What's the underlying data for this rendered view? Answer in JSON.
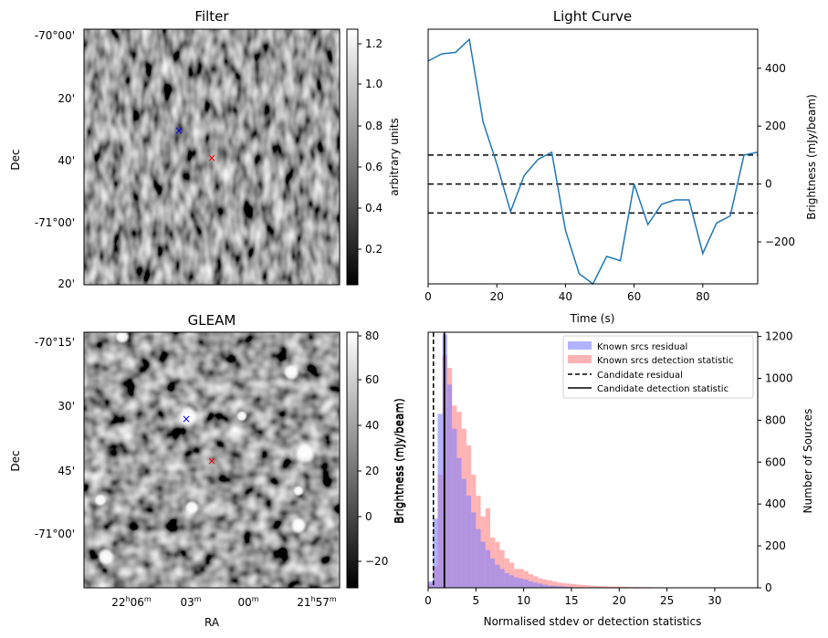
{
  "colors": {
    "line": "#1f77b4",
    "known_hist": "#7f7fff",
    "candidate_hist": "#ff9a9a",
    "marker_blue": "#0000ff",
    "marker_red": "#ff0000"
  },
  "panels": {
    "filter": {
      "title": "Filter",
      "ylabel": "Dec",
      "yticks": [
        "-70°00'",
        "20'",
        "40'",
        "-71°00'",
        "20'"
      ],
      "colorbar_label": "arbitrary units",
      "colorbar_ticks": [
        "0.2",
        "0.4",
        "0.6",
        "0.8",
        "1.0",
        "1.2"
      ]
    },
    "gleam": {
      "title": "GLEAM",
      "ylabel": "Dec",
      "xlabel": "RA",
      "yticks": [
        "-70°15'",
        "30'",
        "45'",
        "-71°00'"
      ],
      "xticks": [
        {
          "main": "22",
          "sup1": "h",
          "mid": "06",
          "sup2": "m"
        },
        {
          "main": "03",
          "sup1": "m",
          "mid": "",
          "sup2": ""
        },
        {
          "main": "00",
          "sup1": "m",
          "mid": "",
          "sup2": ""
        },
        {
          "main": "21",
          "sup1": "h",
          "mid": "57",
          "sup2": "m"
        }
      ],
      "colorbar_label": "Brightness (mJy/beam)",
      "colorbar_ticks": [
        "−20",
        "0",
        "20",
        "40",
        "60",
        "80"
      ]
    }
  },
  "chart_data": [
    {
      "type": "line",
      "title": "Light Curve",
      "xlabel": "Time (s)",
      "ylabel": "Brightness (mJy/beam)",
      "xlim": [
        0,
        96
      ],
      "ylim": [
        -345,
        535
      ],
      "xticks": [
        0,
        20,
        40,
        60,
        80
      ],
      "yticks": [
        -200,
        0,
        200,
        400
      ],
      "x": [
        0,
        4,
        8,
        12,
        16,
        20,
        24,
        28,
        32,
        36,
        40,
        44,
        48,
        52,
        56,
        60,
        64,
        68,
        72,
        76,
        80,
        84,
        88,
        92,
        96
      ],
      "y": [
        425,
        450,
        455,
        500,
        215,
        70,
        -95,
        30,
        85,
        110,
        -160,
        -310,
        -345,
        -250,
        -265,
        0,
        -140,
        -70,
        -55,
        -55,
        -240,
        -135,
        -110,
        100,
        110
      ],
      "hlines": [
        100,
        0,
        -100
      ]
    },
    {
      "type": "bar",
      "xlabel": "Normalised stdev or detection statistics",
      "ylabel": "Number of Sources",
      "left_ylabel": "Brightness (mJy/beam)",
      "xlim": [
        0,
        34.5
      ],
      "ylim": [
        0,
        1220
      ],
      "xticks": [
        0,
        5,
        10,
        15,
        20,
        25,
        30
      ],
      "yticks": [
        0,
        200,
        400,
        600,
        800,
        1000,
        1200
      ],
      "bin_width": 0.5,
      "legend": [
        "Known srcs residual",
        "Known srcs detection statistic",
        "Candidate residual",
        "Candidate detection statistic"
      ],
      "legend_position": "top-right",
      "series": [
        {
          "name": "Known srcs residual",
          "bin_start": 0.0,
          "values": [
            30,
            330,
            830,
            1210,
            970,
            760,
            620,
            520,
            440,
            360,
            280,
            220,
            180,
            140,
            110,
            90,
            70,
            60,
            50,
            45,
            40,
            30,
            25,
            20,
            15,
            10,
            10,
            8,
            6,
            5
          ]
        },
        {
          "name": "Known srcs detection statistic",
          "bin_start": 0.0,
          "values": [
            20,
            100,
            540,
            1110,
            1050,
            870,
            840,
            760,
            680,
            540,
            440,
            340,
            380,
            240,
            220,
            180,
            140,
            120,
            90,
            90,
            80,
            65,
            55,
            45,
            40,
            35,
            30,
            25,
            22,
            20,
            18,
            15,
            14,
            12,
            10,
            9,
            8,
            7,
            6,
            6,
            5,
            5,
            4,
            4,
            3,
            3,
            3,
            2,
            2,
            2,
            2,
            2,
            1,
            1,
            1,
            1,
            1,
            1,
            1,
            1,
            1,
            1,
            1,
            1,
            1
          ]
        },
        {
          "name": "Candidate residual",
          "value": 0.55
        },
        {
          "name": "Candidate detection statistic",
          "value": 1.7
        }
      ]
    }
  ]
}
